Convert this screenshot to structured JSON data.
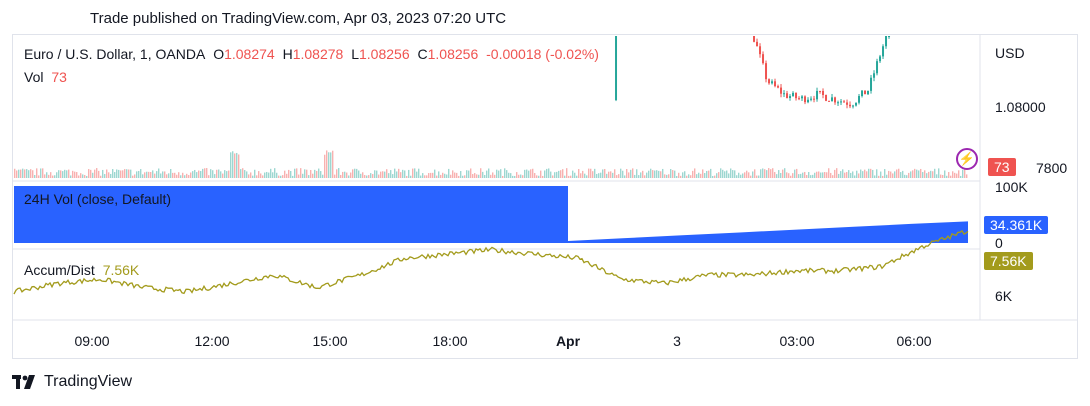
{
  "header": {
    "published": "Trade published on TradingView.com, Apr 03, 2023 07:20 UTC"
  },
  "legend": {
    "symbol": "Euro / U.S. Dollar, 1, OANDA",
    "o_label": "O",
    "o": "1.08274",
    "h_label": "H",
    "h": "1.08278",
    "l_label": "L",
    "l": "1.08256",
    "c_label": "C",
    "c": "1.08256",
    "change": "-0.00018 (-0.02%)",
    "vol_label": "Vol",
    "vol": "73"
  },
  "price_axis": {
    "unit": "USD",
    "level": "1.08000",
    "partial": "7800",
    "vol_badge": "73"
  },
  "vol24": {
    "label": "24H Vol (close, Default)",
    "top": "100K",
    "value": "34.361K",
    "bottom": "0"
  },
  "ad": {
    "label": "Accum/Dist",
    "value": "7.56K",
    "badge": "7.56K",
    "tick": "6K"
  },
  "time_axis": [
    "09:00",
    "12:00",
    "15:00",
    "18:00",
    "Apr",
    "3",
    "03:00",
    "06:00"
  ],
  "brand": {
    "name": "TradingView",
    "icon": "tradingview-logo-icon"
  },
  "colors": {
    "up": "#26a69a",
    "down": "#ef5350",
    "vol24": "#2962ff",
    "ad": "#a39b1c",
    "bolt": "#9c27b0"
  },
  "chart_data": [
    {
      "type": "candlestick",
      "symbol": "EURUSD",
      "interval": "1",
      "last": {
        "open": 1.08274,
        "high": 1.08278,
        "low": 1.08256,
        "close": 1.08256
      },
      "series": [
        {
          "name": "Price",
          "values": [
            1.0842,
            1.0838,
            1.0832,
            1.083,
            1.0826,
            1.0836,
            1.0838,
            1.0824,
            1.0818,
            1.0806,
            1.0803,
            1.0802,
            1.0803,
            1.0802,
            1.0801,
            1.0804,
            1.0815,
            1.0828,
            1.0832,
            1.0835,
            1.0842,
            1.0826
          ]
        }
      ],
      "y_tick": "1.08000"
    },
    {
      "type": "area",
      "series": [
        {
          "name": "24H Vol (close, Default)",
          "values": [
            100,
            100,
            100,
            100,
            100,
            0,
            5,
            10,
            15,
            20,
            25,
            30,
            34.361
          ]
        }
      ],
      "unit": "K",
      "ylim": [
        0,
        100
      ]
    },
    {
      "type": "line",
      "series": [
        {
          "name": "Accum/Dist",
          "values": [
            6.1,
            6.3,
            6.4,
            6.2,
            6.1,
            6.3,
            6.5,
            6.2,
            6.5,
            6.9,
            7.0,
            7.1,
            7.0,
            6.9,
            6.4,
            6.3,
            6.5,
            6.5,
            6.6,
            6.6,
            6.7,
            7.2,
            7.56
          ]
        }
      ],
      "unit": "K",
      "y_tick": "6K"
    }
  ]
}
